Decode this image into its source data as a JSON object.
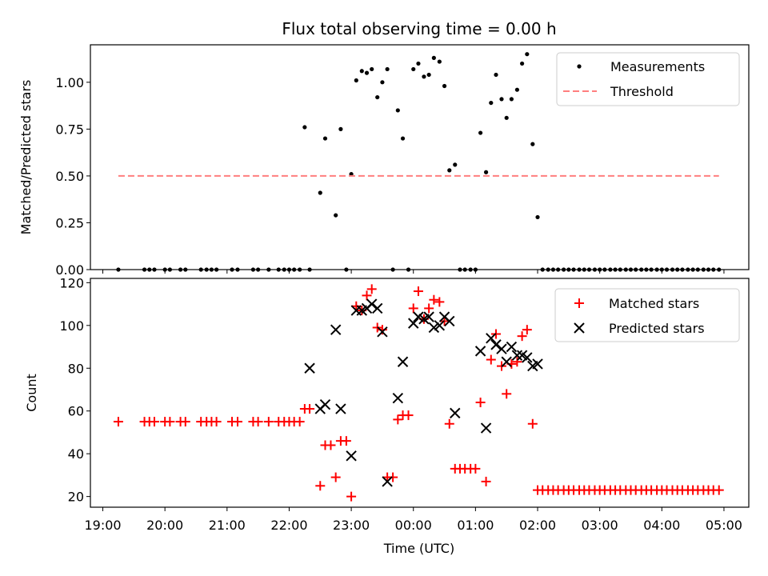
{
  "chart_data": [
    {
      "type": "scatter",
      "title": "Flux total observing time = 0.00 h",
      "xlabel": "",
      "ylabel": "Matched/Predicted stars",
      "ylim": [
        0,
        1.2
      ],
      "yticks": [
        "0.00",
        "0.25",
        "0.50",
        "0.75",
        "1.00"
      ],
      "ytick_values": [
        0,
        0.25,
        0.5,
        0.75,
        1.0
      ],
      "legend_position": "top-right",
      "series": [
        {
          "name": "Measurements",
          "marker": "dot",
          "color": "#000000",
          "x": [
            19.25,
            19.67,
            19.75,
            19.83,
            20.0,
            20.08,
            20.25,
            20.33,
            20.58,
            20.67,
            20.75,
            20.83,
            21.08,
            21.17,
            21.42,
            21.5,
            21.67,
            21.83,
            21.92,
            22.0,
            22.08,
            22.17,
            22.25,
            22.33,
            22.5,
            22.58,
            22.75,
            22.83,
            22.92,
            23.0,
            23.08,
            23.17,
            23.25,
            23.33,
            23.42,
            23.5,
            23.58,
            23.67,
            23.75,
            23.83,
            23.92,
            24.0,
            24.08,
            24.17,
            24.25,
            24.33,
            24.42,
            24.5,
            24.58,
            24.67,
            24.75,
            24.83,
            24.92,
            25.0,
            25.08,
            25.17,
            25.25,
            25.33,
            25.42,
            25.5,
            25.58,
            25.67,
            25.75,
            25.83,
            25.92,
            26.0,
            26.08,
            26.17,
            26.25,
            26.33,
            26.42,
            26.5,
            26.58,
            26.67,
            26.75,
            26.83,
            26.92,
            27.0,
            27.08,
            27.17,
            27.25,
            27.33,
            27.42,
            27.5,
            27.58,
            27.67,
            27.75,
            27.83,
            27.92,
            28.0,
            28.08,
            28.17,
            28.25,
            28.33,
            28.42,
            28.5,
            28.58,
            28.67,
            28.75,
            28.83,
            28.92
          ],
          "y": [
            0,
            0,
            0,
            0,
            0,
            0,
            0,
            0,
            0,
            0,
            0,
            0,
            0,
            0,
            0,
            0,
            0,
            0,
            0,
            0,
            0,
            0,
            0.76,
            0,
            0.41,
            0.7,
            0.29,
            0.75,
            0,
            0.51,
            1.01,
            1.06,
            1.05,
            1.07,
            0.92,
            1.0,
            1.07,
            0,
            0.85,
            0.7,
            0,
            1.07,
            1.1,
            1.03,
            1.04,
            1.13,
            1.11,
            0.98,
            0.53,
            0.56,
            0,
            0,
            0,
            0,
            0.73,
            0.52,
            0.89,
            1.04,
            0.91,
            0.81,
            0.91,
            0.96,
            1.1,
            1.15,
            0.67,
            0.28,
            0,
            0,
            0,
            0,
            0,
            0,
            0,
            0,
            0,
            0,
            0,
            0,
            0,
            0,
            0,
            0,
            0,
            0,
            0,
            0,
            0,
            0,
            0,
            0,
            0,
            0,
            0,
            0,
            0,
            0,
            0,
            0,
            0,
            0,
            0
          ]
        },
        {
          "name": "Threshold",
          "marker": "dashed-line",
          "color": "#ff7f7f",
          "x": [
            19.25,
            28.92
          ],
          "y": [
            0.5,
            0.5
          ]
        }
      ]
    },
    {
      "type": "scatter",
      "title": "",
      "xlabel": "Time (UTC)",
      "ylabel": "Count",
      "ylim": [
        15,
        122
      ],
      "yticks": [
        "20",
        "40",
        "60",
        "80",
        "100",
        "120"
      ],
      "ytick_values": [
        20,
        40,
        60,
        80,
        100,
        120
      ],
      "xlim": [
        18.8,
        29.4
      ],
      "xticks": [
        "19:00",
        "20:00",
        "21:00",
        "22:00",
        "23:00",
        "00:00",
        "01:00",
        "02:00",
        "03:00",
        "04:00",
        "05:00"
      ],
      "xtick_values": [
        19,
        20,
        21,
        22,
        23,
        24,
        25,
        26,
        27,
        28,
        29
      ],
      "legend_position": "top-right",
      "series": [
        {
          "name": "Matched stars",
          "marker": "plus",
          "color": "#ff0000",
          "x": [
            19.25,
            19.67,
            19.75,
            19.83,
            20.0,
            20.08,
            20.25,
            20.33,
            20.58,
            20.67,
            20.75,
            20.83,
            21.08,
            21.17,
            21.42,
            21.5,
            21.67,
            21.83,
            21.92,
            22.0,
            22.08,
            22.17,
            22.25,
            22.33,
            22.5,
            22.58,
            22.67,
            22.75,
            22.83,
            22.92,
            23.0,
            23.08,
            23.17,
            23.25,
            23.33,
            23.42,
            23.5,
            23.58,
            23.67,
            23.75,
            23.83,
            23.92,
            24.0,
            24.08,
            24.17,
            24.25,
            24.33,
            24.42,
            24.5,
            24.58,
            24.67,
            24.75,
            24.83,
            24.92,
            25.0,
            25.08,
            25.17,
            25.25,
            25.33,
            25.42,
            25.5,
            25.58,
            25.67,
            25.75,
            25.83,
            25.92,
            26.0,
            26.08,
            26.17,
            26.25,
            26.33,
            26.42,
            26.5,
            26.58,
            26.67,
            26.75,
            26.83,
            26.92,
            27.0,
            27.08,
            27.17,
            27.25,
            27.33,
            27.42,
            27.5,
            27.58,
            27.67,
            27.75,
            27.83,
            27.92,
            28.0,
            28.08,
            28.17,
            28.25,
            28.33,
            28.42,
            28.5,
            28.58,
            28.67,
            28.75,
            28.83,
            28.92
          ],
          "y": [
            55,
            55,
            55,
            55,
            55,
            55,
            55,
            55,
            55,
            55,
            55,
            55,
            55,
            55,
            55,
            55,
            55,
            55,
            55,
            55,
            55,
            55,
            61,
            61,
            25,
            44,
            44,
            29,
            46,
            46,
            20,
            109,
            107,
            114,
            117,
            99,
            98,
            29,
            29,
            56,
            58,
            58,
            108,
            116,
            103,
            108,
            112,
            111,
            102,
            54,
            33,
            33,
            33,
            33,
            33,
            64,
            27,
            84,
            96,
            81,
            68,
            82,
            83,
            95,
            98,
            54,
            23,
            23,
            23,
            23,
            23,
            23,
            23,
            23,
            23,
            23,
            23,
            23,
            23,
            23,
            23,
            23,
            23,
            23,
            23,
            23,
            23,
            23,
            23,
            23,
            23,
            23,
            23,
            23,
            23,
            23,
            23,
            23,
            23,
            23,
            23,
            23
          ]
        },
        {
          "name": "Predicted stars",
          "marker": "x",
          "color": "#000000",
          "x": [
            22.33,
            22.5,
            22.58,
            22.75,
            22.83,
            23.0,
            23.08,
            23.17,
            23.25,
            23.33,
            23.42,
            23.5,
            23.58,
            23.75,
            23.83,
            24.0,
            24.08,
            24.17,
            24.25,
            24.33,
            24.42,
            24.5,
            24.58,
            24.67,
            25.08,
            25.17,
            25.25,
            25.33,
            25.42,
            25.5,
            25.58,
            25.67,
            25.75,
            25.83,
            25.92,
            26.0
          ],
          "y": [
            80,
            61,
            63,
            98,
            61,
            39,
            107,
            107,
            108,
            110,
            108,
            97,
            27,
            66,
            83,
            101,
            104,
            103,
            104,
            99,
            100,
            104,
            102,
            59,
            88,
            52,
            94,
            91,
            89,
            83,
            90,
            86,
            86,
            85,
            81,
            82
          ]
        }
      ]
    }
  ]
}
